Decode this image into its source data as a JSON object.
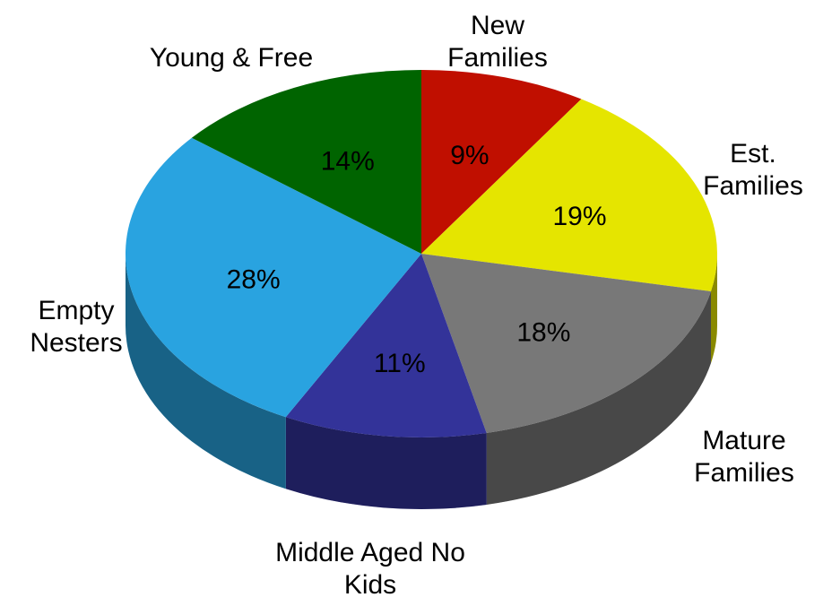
{
  "chart_data": {
    "type": "pie",
    "categories": [
      "New Families",
      "Est. Families",
      "Mature Families",
      "Middle Aged No Kids",
      "Empty Nesters",
      "Young & Free"
    ],
    "values": [
      9,
      19,
      18,
      11,
      28,
      14
    ],
    "value_labels": [
      "9%",
      "19%",
      "18%",
      "11%",
      "28%",
      "14%"
    ],
    "colors": [
      "#c00f00",
      "#e5e500",
      "#787878",
      "#333399",
      "#29a3e0",
      "#006400"
    ]
  }
}
